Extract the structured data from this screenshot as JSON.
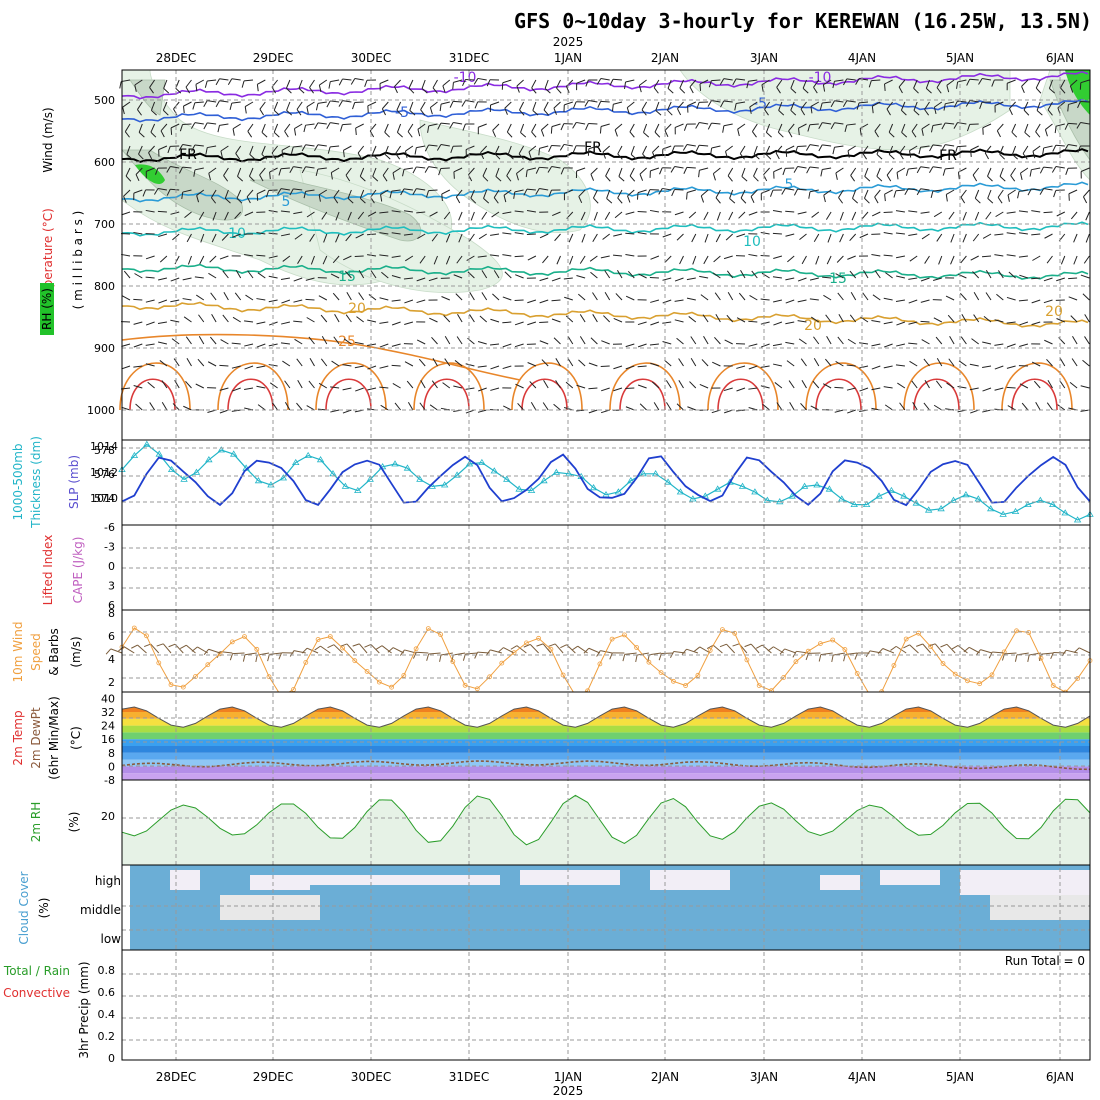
{
  "title": "GFS 0~10day 3-hourly for KEREWAN (16.25W, 13.5N)",
  "colors": {
    "rh_green": "#8fd18f",
    "rh_light": "#e6f2e6",
    "cloud_blue": "#6baed6",
    "cloud_high": "#f2eef6",
    "cloud_mid": "#e8e8e8",
    "thickness": "#22b5c8",
    "slp": "#1f3fcf",
    "wind_speed": "#f0a040",
    "barb": "#7a5c3a",
    "rh2m": "#2a9d2a",
    "dewpoint": "#8b5a3c"
  },
  "time_axis": {
    "top_dates": [
      "28DEC",
      "29DEC",
      "30DEC",
      "31DEC",
      "1JAN",
      "2JAN",
      "3JAN",
      "4JAN",
      "5JAN",
      "6JAN"
    ],
    "bottom_dates": [
      "28DEC",
      "29DEC",
      "30DEC",
      "31DEC",
      "1JAN",
      "2JAN",
      "3JAN",
      "4JAN",
      "5JAN",
      "6JAN"
    ],
    "year_label": "2025"
  },
  "panels": {
    "upper": {
      "ylabel_wind": "Wind (m/s)",
      "ylabel_temp": "Temperature (°C)",
      "ylabel_rh": "RH (%)",
      "ylabel_mb": "( m i l l i b a r s )",
      "yticks": [
        "500",
        "600",
        "700",
        "800",
        "900",
        "1000"
      ]
    },
    "thickness": {
      "ylabel_a": "1000-500mb",
      "ylabel_b": "Thickness (dm)",
      "ylabel_c": "SLP (mb)",
      "left_ticks": [
        "578",
        "576",
        "574"
      ],
      "right_ticks": [
        "1014",
        "1012",
        "1010"
      ]
    },
    "li": {
      "ylabel_a": "Lifted Index",
      "ylabel_b": "CAPE (J/kg)",
      "ticks": [
        "-6",
        "-3",
        "0",
        "3",
        "6"
      ]
    },
    "wind10": {
      "ylabel_a": "10m Wind",
      "ylabel_b": "Speed",
      "ylabel_c": "& Barbs",
      "ylabel_d": "(m/s)",
      "ticks": [
        "8",
        "6",
        "4",
        "2"
      ]
    },
    "temp2m": {
      "ylabel_a": "2m Temp",
      "ylabel_b": "2m DewPt",
      "ylabel_c": "(6hr Min/Max)",
      "ylabel_d": "(°C)",
      "ticks": [
        "40",
        "32",
        "24",
        "16",
        "8",
        "0",
        "-8"
      ]
    },
    "rh2m": {
      "ylabel_a": "2m RH",
      "ylabel_b": "(%)",
      "ticks": [
        "20"
      ]
    },
    "cloud": {
      "ylabel_a": "Cloud Cover",
      "ylabel_b": "(%)",
      "levels": [
        "high",
        "middle",
        "low"
      ]
    },
    "precip": {
      "ylabel_a": "Total / Rain",
      "ylabel_b": "Convective",
      "ylabel_c": "3hr Precip (mm)",
      "ticks": [
        "0.8",
        "0.6",
        "0.4",
        "0.2",
        "0"
      ],
      "run_total": "Run Total = 0"
    }
  },
  "chart_data": {
    "type": "line",
    "title": "GFS 0~10day 3-hourly for KEREWAN (16.25W, 13.5N)",
    "time_step_hours": 3,
    "start": "27DEC 12Z",
    "contour_labels": {
      "temperature_c": [
        "-10",
        "-10",
        "-5",
        "-5",
        "FR",
        "FR",
        "FR",
        "5",
        "5",
        "10",
        "10",
        "15",
        "15",
        "20",
        "20",
        "20",
        "25"
      ]
    },
    "thickness_dm": [
      576.1,
      577.1,
      577.9,
      577.2,
      576.1,
      575.4,
      575.9,
      576.8,
      577.5,
      577.2,
      576.2,
      575.3,
      575.0,
      575.5,
      576.6,
      577.1,
      576.8,
      575.8,
      574.9,
      574.6,
      575.4,
      576.3,
      576.5,
      576.2,
      575.4,
      574.9,
      575.0,
      575.7,
      576.5,
      576.6,
      576.0,
      575.4,
      574.7,
      574.6,
      575.3,
      575.9,
      575.8,
      575.6,
      574.8,
      574.3,
      574.5,
      575.3,
      575.8,
      575.8,
      575.2,
      574.5,
      574.0,
      574.2,
      574.7,
      575.2,
      574.9,
      574.5,
      573.9,
      573.8,
      574.2,
      574.9,
      575.0,
      574.7,
      574.0,
      573.6,
      573.6,
      574.2,
      574.6,
      574.2,
      573.7,
      573.2,
      573.3,
      573.9,
      574.3,
      574.0,
      573.3,
      572.9,
      573.1,
      573.6,
      573.9,
      573.6,
      573.0,
      572.5,
      572.9
    ]
  }
}
